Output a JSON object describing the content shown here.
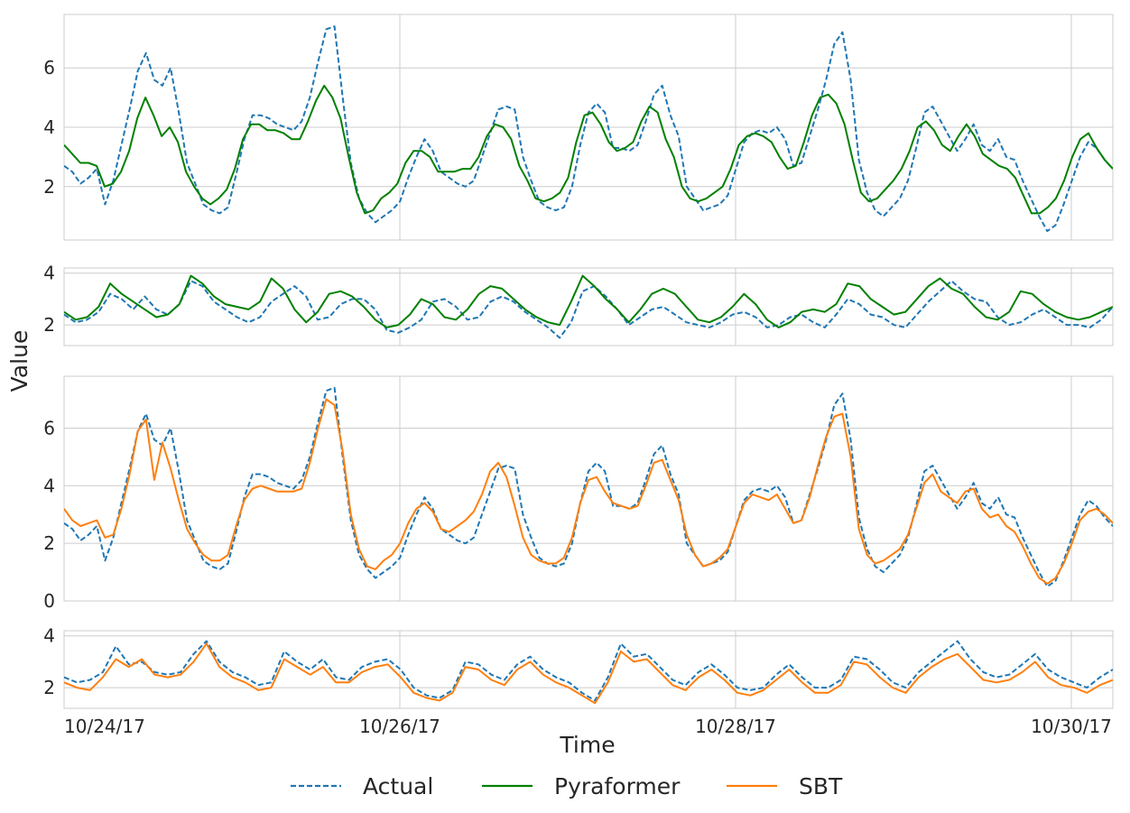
{
  "chart_data": {
    "type": "line",
    "xlabel": "Time",
    "ylabel": "Value",
    "x_tick_labels": [
      "10/24/17",
      "10/26/17",
      "10/28/17",
      "10/30/17"
    ],
    "x_range": [
      "10/23/17 23:00",
      "10/30/17 07:00"
    ],
    "legend": {
      "placement": "bottom-center",
      "entries": [
        "Actual",
        "Pyraformer",
        "SBT"
      ]
    },
    "colors": {
      "Actual": "#1f77b4",
      "Pyraformer": "#008000",
      "SBT": "#ff7f0e"
    },
    "grid": true,
    "panels": [
      {
        "id": "panel1",
        "ylim": [
          0.2,
          7.8
        ],
        "yticks": [
          2,
          4,
          6
        ],
        "series": [
          {
            "name": "Actual",
            "style": "dashed",
            "values": [
              2.7,
              2.5,
              2.1,
              2.3,
              2.6,
              1.4,
              2.2,
              3.4,
              4.6,
              5.9,
              6.5,
              5.6,
              5.4,
              6.0,
              4.5,
              2.8,
              2.1,
              1.4,
              1.2,
              1.1,
              1.3,
              2.4,
              3.6,
              4.4,
              4.4,
              4.3,
              4.1,
              4.0,
              3.9,
              4.2,
              5.0,
              6.2,
              7.3,
              7.4,
              5.0,
              2.8,
              1.6,
              1.1,
              0.8,
              1.0,
              1.2,
              1.5,
              2.3,
              3.0,
              3.6,
              3.2,
              2.5,
              2.3,
              2.1,
              2.0,
              2.2,
              3.0,
              3.8,
              4.6,
              4.7,
              4.6,
              3.0,
              2.2,
              1.5,
              1.3,
              1.2,
              1.3,
              2.0,
              3.4,
              4.5,
              4.8,
              4.5,
              3.3,
              3.3,
              3.2,
              3.4,
              4.2,
              5.1,
              5.4,
              4.4,
              3.7,
              2.0,
              1.6,
              1.2,
              1.3,
              1.4,
              1.7,
              2.6,
              3.5,
              3.8,
              3.9,
              3.8,
              4.0,
              3.6,
              2.7,
              2.8,
              3.7,
              4.6,
              5.6,
              6.8,
              7.2,
              5.6,
              2.9,
              1.8,
              1.2,
              1.0,
              1.3,
              1.6,
              2.2,
              3.3,
              4.5,
              4.7,
              4.2,
              3.7,
              3.2,
              3.6,
              4.1,
              3.4,
              3.2,
              3.6,
              3.0,
              2.9,
              2.2,
              1.6,
              1.0,
              0.5,
              0.7,
              1.4,
              2.2,
              3.0,
              3.5,
              3.3,
              2.9,
              2.6
            ]
          },
          {
            "name": "Pyraformer",
            "style": "solid",
            "values": [
              3.4,
              3.1,
              2.8,
              2.8,
              2.7,
              2.0,
              2.1,
              2.5,
              3.2,
              4.3,
              5.0,
              4.4,
              3.7,
              4.0,
              3.5,
              2.5,
              2.0,
              1.6,
              1.4,
              1.6,
              1.9,
              2.6,
              3.6,
              4.1,
              4.1,
              3.9,
              3.9,
              3.8,
              3.6,
              3.6,
              4.2,
              4.9,
              5.4,
              5.0,
              4.3,
              3.0,
              1.8,
              1.1,
              1.2,
              1.6,
              1.8,
              2.1,
              2.8,
              3.2,
              3.2,
              3.0,
              2.5,
              2.5,
              2.5,
              2.6,
              2.6,
              3.0,
              3.7,
              4.1,
              4.0,
              3.6,
              2.7,
              2.2,
              1.6,
              1.5,
              1.6,
              1.8,
              2.3,
              3.5,
              4.4,
              4.5,
              4.1,
              3.5,
              3.2,
              3.3,
              3.5,
              4.2,
              4.7,
              4.5,
              3.6,
              3.0,
              2.0,
              1.6,
              1.5,
              1.6,
              1.8,
              2.0,
              2.6,
              3.4,
              3.7,
              3.8,
              3.7,
              3.5,
              3.0,
              2.6,
              2.7,
              3.5,
              4.4,
              5.0,
              5.1,
              4.8,
              4.1,
              2.9,
              1.8,
              1.5,
              1.6,
              1.9,
              2.2,
              2.6,
              3.2,
              4.0,
              4.2,
              3.9,
              3.4,
              3.2,
              3.7,
              4.1,
              3.7,
              3.1,
              2.9,
              2.7,
              2.6,
              2.3,
              1.7,
              1.1,
              1.1,
              1.3,
              1.6,
              2.2,
              3.0,
              3.6,
              3.8,
              3.3,
              2.9,
              2.6
            ]
          }
        ]
      },
      {
        "id": "panel2",
        "ylim": [
          1.2,
          4.2
        ],
        "yticks": [
          2,
          4
        ],
        "series": [
          {
            "name": "Actual",
            "style": "dashed",
            "values": [
              2.4,
              2.1,
              2.2,
              2.5,
              3.2,
              3.0,
              2.6,
              3.1,
              2.6,
              2.4,
              2.8,
              3.7,
              3.5,
              2.9,
              2.6,
              2.3,
              2.1,
              2.3,
              2.9,
              3.2,
              3.5,
              3.1,
              2.2,
              2.3,
              2.8,
              3.0,
              3.0,
              2.6,
              1.8,
              1.7,
              1.9,
              2.2,
              2.9,
              3.0,
              2.7,
              2.2,
              2.3,
              2.9,
              3.1,
              2.9,
              2.5,
              2.2,
              1.9,
              1.5,
              2.1,
              3.3,
              3.5,
              3.1,
              2.6,
              2.0,
              2.3,
              2.6,
              2.7,
              2.4,
              2.1,
              2.0,
              1.9,
              2.1,
              2.4,
              2.5,
              2.3,
              1.9,
              2.0,
              2.3,
              2.4,
              2.1,
              1.9,
              2.4,
              3.0,
              2.8,
              2.4,
              2.3,
              2.0,
              1.9,
              2.4,
              2.9,
              3.3,
              3.7,
              3.3,
              3.0,
              2.9,
              2.3,
              2.0,
              2.1,
              2.4,
              2.6,
              2.3,
              2.0,
              2.0,
              1.9,
              2.2,
              2.7
            ]
          },
          {
            "name": "Pyraformer",
            "style": "solid",
            "values": [
              2.5,
              2.2,
              2.3,
              2.7,
              3.6,
              3.2,
              2.9,
              2.6,
              2.3,
              2.4,
              2.8,
              3.9,
              3.6,
              3.1,
              2.8,
              2.7,
              2.6,
              2.9,
              3.8,
              3.4,
              2.6,
              2.1,
              2.5,
              3.2,
              3.3,
              3.1,
              2.7,
              2.2,
              1.9,
              2.0,
              2.4,
              3.0,
              2.8,
              2.3,
              2.2,
              2.6,
              3.2,
              3.5,
              3.4,
              3.0,
              2.6,
              2.3,
              2.1,
              2.0,
              2.9,
              3.9,
              3.5,
              3.0,
              2.6,
              2.1,
              2.6,
              3.2,
              3.4,
              3.2,
              2.7,
              2.2,
              2.1,
              2.3,
              2.7,
              3.2,
              2.8,
              2.2,
              1.9,
              2.1,
              2.5,
              2.6,
              2.5,
              2.8,
              3.6,
              3.5,
              3.0,
              2.7,
              2.4,
              2.5,
              3.0,
              3.5,
              3.8,
              3.4,
              3.2,
              2.7,
              2.3,
              2.2,
              2.5,
              3.3,
              3.2,
              2.8,
              2.5,
              2.3,
              2.2,
              2.3,
              2.5,
              2.7
            ]
          }
        ]
      },
      {
        "id": "panel3",
        "ylim": [
          0,
          7.8
        ],
        "yticks": [
          0,
          2,
          4,
          6
        ],
        "series": [
          {
            "name": "Actual",
            "style": "dashed",
            "values": [
              2.7,
              2.5,
              2.1,
              2.3,
              2.6,
              1.4,
              2.2,
              3.4,
              4.6,
              5.9,
              6.5,
              5.6,
              5.4,
              6.0,
              4.5,
              2.8,
              2.1,
              1.4,
              1.2,
              1.1,
              1.3,
              2.4,
              3.6,
              4.4,
              4.4,
              4.3,
              4.1,
              4.0,
              3.9,
              4.2,
              5.0,
              6.2,
              7.3,
              7.4,
              5.0,
              2.8,
              1.6,
              1.1,
              0.8,
              1.0,
              1.2,
              1.5,
              2.3,
              3.0,
              3.6,
              3.2,
              2.5,
              2.3,
              2.1,
              2.0,
              2.2,
              3.0,
              3.8,
              4.6,
              4.7,
              4.6,
              3.0,
              2.2,
              1.5,
              1.3,
              1.2,
              1.3,
              2.0,
              3.4,
              4.5,
              4.8,
              4.5,
              3.3,
              3.3,
              3.2,
              3.4,
              4.2,
              5.1,
              5.4,
              4.4,
              3.7,
              2.0,
              1.6,
              1.2,
              1.3,
              1.4,
              1.7,
              2.6,
              3.5,
              3.8,
              3.9,
              3.8,
              4.0,
              3.6,
              2.7,
              2.8,
              3.7,
              4.6,
              5.6,
              6.8,
              7.2,
              5.6,
              2.9,
              1.8,
              1.2,
              1.0,
              1.3,
              1.6,
              2.2,
              3.3,
              4.5,
              4.7,
              4.2,
              3.7,
              3.2,
              3.6,
              4.1,
              3.4,
              3.2,
              3.6,
              3.0,
              2.9,
              2.2,
              1.6,
              1.0,
              0.5,
              0.7,
              1.4,
              2.2,
              3.0,
              3.5,
              3.3,
              2.9,
              2.6
            ]
          },
          {
            "name": "SBT",
            "style": "solid",
            "values": [
              3.2,
              2.8,
              2.6,
              2.7,
              2.8,
              2.2,
              2.3,
              3.2,
              4.4,
              5.9,
              6.3,
              4.2,
              5.5,
              4.6,
              3.5,
              2.5,
              2.0,
              1.6,
              1.4,
              1.4,
              1.6,
              2.6,
              3.5,
              3.9,
              4.0,
              3.9,
              3.8,
              3.8,
              3.8,
              3.9,
              4.8,
              6.0,
              7.0,
              6.8,
              5.2,
              3.0,
              1.8,
              1.2,
              1.1,
              1.4,
              1.6,
              2.0,
              2.7,
              3.2,
              3.4,
              3.1,
              2.5,
              2.4,
              2.6,
              2.8,
              3.1,
              3.7,
              4.5,
              4.8,
              4.3,
              3.3,
              2.2,
              1.6,
              1.4,
              1.3,
              1.3,
              1.5,
              2.2,
              3.4,
              4.2,
              4.3,
              3.8,
              3.4,
              3.3,
              3.2,
              3.3,
              4.0,
              4.8,
              4.9,
              4.2,
              3.5,
              2.3,
              1.6,
              1.2,
              1.3,
              1.5,
              1.8,
              2.6,
              3.4,
              3.7,
              3.6,
              3.5,
              3.7,
              3.2,
              2.7,
              2.8,
              3.6,
              4.7,
              5.7,
              6.4,
              6.5,
              5.0,
              2.5,
              1.6,
              1.3,
              1.4,
              1.6,
              1.8,
              2.3,
              3.2,
              4.1,
              4.4,
              3.8,
              3.6,
              3.4,
              3.8,
              3.9,
              3.2,
              2.9,
              3.0,
              2.6,
              2.4,
              1.9,
              1.3,
              0.8,
              0.6,
              0.8,
              1.3,
              2.0,
              2.8,
              3.1,
              3.2,
              3.0,
              2.7
            ]
          }
        ]
      },
      {
        "id": "panel4",
        "ylim": [
          1.2,
          4.2
        ],
        "yticks": [
          2,
          4
        ],
        "series": [
          {
            "name": "Actual",
            "style": "dashed",
            "values": [
              2.4,
              2.2,
              2.3,
              2.6,
              3.6,
              2.9,
              3.0,
              2.6,
              2.5,
              2.6,
              3.3,
              3.8,
              3.0,
              2.6,
              2.4,
              2.1,
              2.2,
              3.4,
              3.0,
              2.7,
              3.1,
              2.4,
              2.3,
              2.8,
              3.0,
              3.1,
              2.7,
              2.0,
              1.7,
              1.6,
              1.9,
              3.0,
              2.9,
              2.5,
              2.3,
              2.9,
              3.2,
              2.7,
              2.4,
              2.2,
              1.8,
              1.5,
              2.4,
              3.7,
              3.2,
              3.3,
              2.8,
              2.3,
              2.1,
              2.6,
              2.9,
              2.5,
              2.0,
              1.9,
              2.0,
              2.5,
              2.9,
              2.4,
              2.0,
              2.0,
              2.3,
              3.2,
              3.1,
              2.7,
              2.2,
              2.0,
              2.6,
              3.0,
              3.4,
              3.8,
              3.1,
              2.6,
              2.4,
              2.5,
              2.9,
              3.3,
              2.7,
              2.4,
              2.2,
              2.0,
              2.4,
              2.7
            ]
          },
          {
            "name": "SBT",
            "style": "solid",
            "values": [
              2.2,
              2.0,
              1.9,
              2.4,
              3.1,
              2.8,
              3.1,
              2.5,
              2.4,
              2.5,
              3.0,
              3.7,
              2.8,
              2.4,
              2.2,
              1.9,
              2.0,
              3.1,
              2.8,
              2.5,
              2.8,
              2.2,
              2.2,
              2.6,
              2.8,
              2.9,
              2.4,
              1.8,
              1.6,
              1.5,
              1.8,
              2.8,
              2.7,
              2.3,
              2.1,
              2.7,
              3.0,
              2.5,
              2.2,
              2.0,
              1.7,
              1.4,
              2.2,
              3.4,
              3.0,
              3.1,
              2.6,
              2.1,
              1.9,
              2.4,
              2.7,
              2.3,
              1.8,
              1.7,
              1.9,
              2.3,
              2.7,
              2.2,
              1.8,
              1.8,
              2.1,
              3.0,
              2.9,
              2.4,
              2.0,
              1.8,
              2.4,
              2.8,
              3.1,
              3.3,
              2.8,
              2.3,
              2.2,
              2.3,
              2.6,
              3.0,
              2.4,
              2.1,
              2.0,
              1.8,
              2.1,
              2.3
            ]
          }
        ]
      }
    ]
  }
}
